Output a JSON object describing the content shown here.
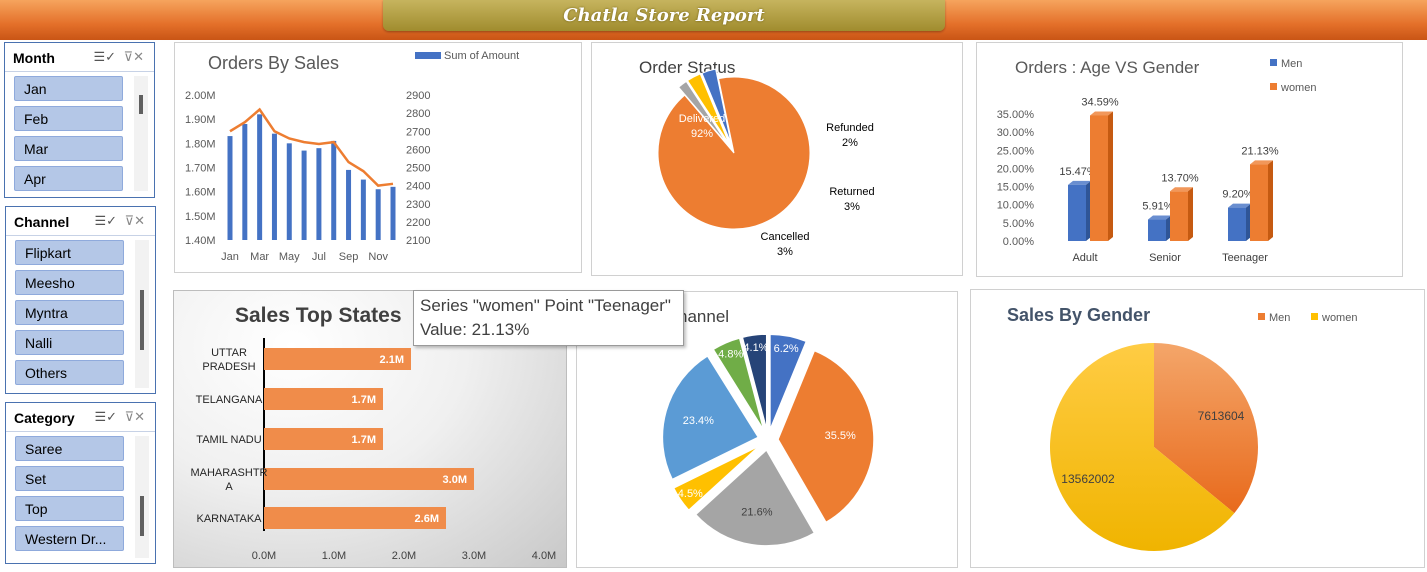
{
  "report_title": "Chatla Store Report",
  "slicers": {
    "month": {
      "label": "Month",
      "items": [
        "Jan",
        "Feb",
        "Mar",
        "Apr"
      ]
    },
    "channel": {
      "label": "Channel",
      "items": [
        "Flipkart",
        "Meesho",
        "Myntra",
        "Nalli",
        "Others"
      ]
    },
    "category": {
      "label": "Category",
      "items": [
        "Saree",
        "Set",
        "Top",
        "Western Dr..."
      ]
    }
  },
  "icons": {
    "multi_select": "multi-select-icon",
    "clear_filter": "clear-filter-icon"
  },
  "colors": {
    "banner_orange": "#e4702a",
    "title_gold": "#b5a146",
    "slicer_item": "#b4c7e7",
    "blue": "#4472c4",
    "orange": "#ed7d31",
    "gray": "#a5a5a5",
    "yellow": "#ffc000",
    "light_blue": "#5b9bd5",
    "green": "#70ad47",
    "navy": "#264478"
  },
  "tooltip": {
    "line1": "Series \"women\" Point \"Teenager\"",
    "line2": "Value: 21.13%"
  },
  "chart_data": [
    {
      "type": "bar+line",
      "title": "Orders By Sales",
      "legend": [
        "Sum of Amount"
      ],
      "x_tick_labels": [
        "Jan",
        "Mar",
        "May",
        "Jul",
        "Sep",
        "Nov"
      ],
      "categories": [
        "Jan",
        "Feb",
        "Mar",
        "Apr",
        "May",
        "Jun",
        "Jul",
        "Aug",
        "Sep",
        "Oct",
        "Nov",
        "Dec"
      ],
      "series": [
        {
          "name": "Sum of Amount",
          "axis": "left",
          "values": [
            1.83,
            1.88,
            1.92,
            1.84,
            1.8,
            1.77,
            1.78,
            1.81,
            1.69,
            1.65,
            1.61,
            1.62
          ]
        },
        {
          "axis": "right",
          "values": [
            2700,
            2750,
            2820,
            2700,
            2660,
            2640,
            2630,
            2640,
            2530,
            2480,
            2400,
            2410
          ]
        }
      ],
      "y_left_ticks": [
        "2.00M",
        "1.90M",
        "1.80M",
        "1.70M",
        "1.60M",
        "1.50M",
        "1.40M"
      ],
      "y_right_ticks": [
        "2900",
        "2800",
        "2700",
        "2600",
        "2500",
        "2400",
        "2300",
        "2200",
        "2100"
      ],
      "ylim_left": [
        1.4,
        2.0
      ],
      "ylim_right": [
        2100,
        2900
      ]
    },
    {
      "type": "pie",
      "title": "Order Status",
      "slices": [
        {
          "name": "Delivered",
          "value": 92,
          "label": "92%"
        },
        {
          "name": "Refunded",
          "value": 2,
          "label": "2%"
        },
        {
          "name": "Returned",
          "value": 3,
          "label": "3%"
        },
        {
          "name": "Cancelled",
          "value": 3,
          "label": "3%"
        }
      ]
    },
    {
      "type": "bar",
      "title": "Orders : Age VS Gender",
      "categories": [
        "Adult",
        "Senior",
        "Teenager"
      ],
      "series": [
        {
          "name": "Men",
          "values": [
            15.47,
            5.91,
            9.2
          ],
          "labels": [
            "15.47%",
            "5.91%",
            "9.20%"
          ]
        },
        {
          "name": "women",
          "values": [
            34.59,
            13.7,
            21.13
          ],
          "labels": [
            "34.59%",
            "13.70%",
            "21.13%"
          ]
        }
      ],
      "y_ticks": [
        "35.00%",
        "30.00%",
        "25.00%",
        "20.00%",
        "15.00%",
        "10.00%",
        "5.00%",
        "0.00%"
      ],
      "ylim": [
        0,
        35
      ]
    },
    {
      "type": "bar",
      "orientation": "horizontal",
      "title": "Sales Top States",
      "categories": [
        [
          "UTTAR",
          "PRADESH"
        ],
        [
          "TELANGANA"
        ],
        [
          "TAMIL NADU"
        ],
        [
          "MAHARASHTR",
          "A"
        ],
        [
          "KARNATAKA"
        ]
      ],
      "values": [
        2.1,
        1.7,
        1.7,
        3.0,
        2.6
      ],
      "labels": [
        "2.1M",
        "1.7M",
        "1.7M",
        "3.0M",
        "2.6M"
      ],
      "x_ticks": [
        "0.0M",
        "1.0M",
        "2.0M",
        "3.0M",
        "4.0M"
      ],
      "xlim": [
        0,
        4
      ]
    },
    {
      "type": "pie",
      "title": "hannel",
      "slices": [
        {
          "value": 6.2,
          "label": "6.2%"
        },
        {
          "value": 35.5,
          "label": "35.5%"
        },
        {
          "value": 21.6,
          "label": "21.6%"
        },
        {
          "value": 4.5,
          "label": "4.5%"
        },
        {
          "value": 23.4,
          "label": "23.4%"
        },
        {
          "value": 4.8,
          "label": "4.8%"
        },
        {
          "value": 4.1,
          "label": "4.1%"
        }
      ]
    },
    {
      "type": "pie",
      "title": "Sales By Gender",
      "legend": [
        "Men",
        "women"
      ],
      "slices": [
        {
          "name": "Men",
          "value": 7613604,
          "label": "7613604"
        },
        {
          "name": "women",
          "value": 13562002,
          "label": "13562002"
        }
      ]
    }
  ]
}
